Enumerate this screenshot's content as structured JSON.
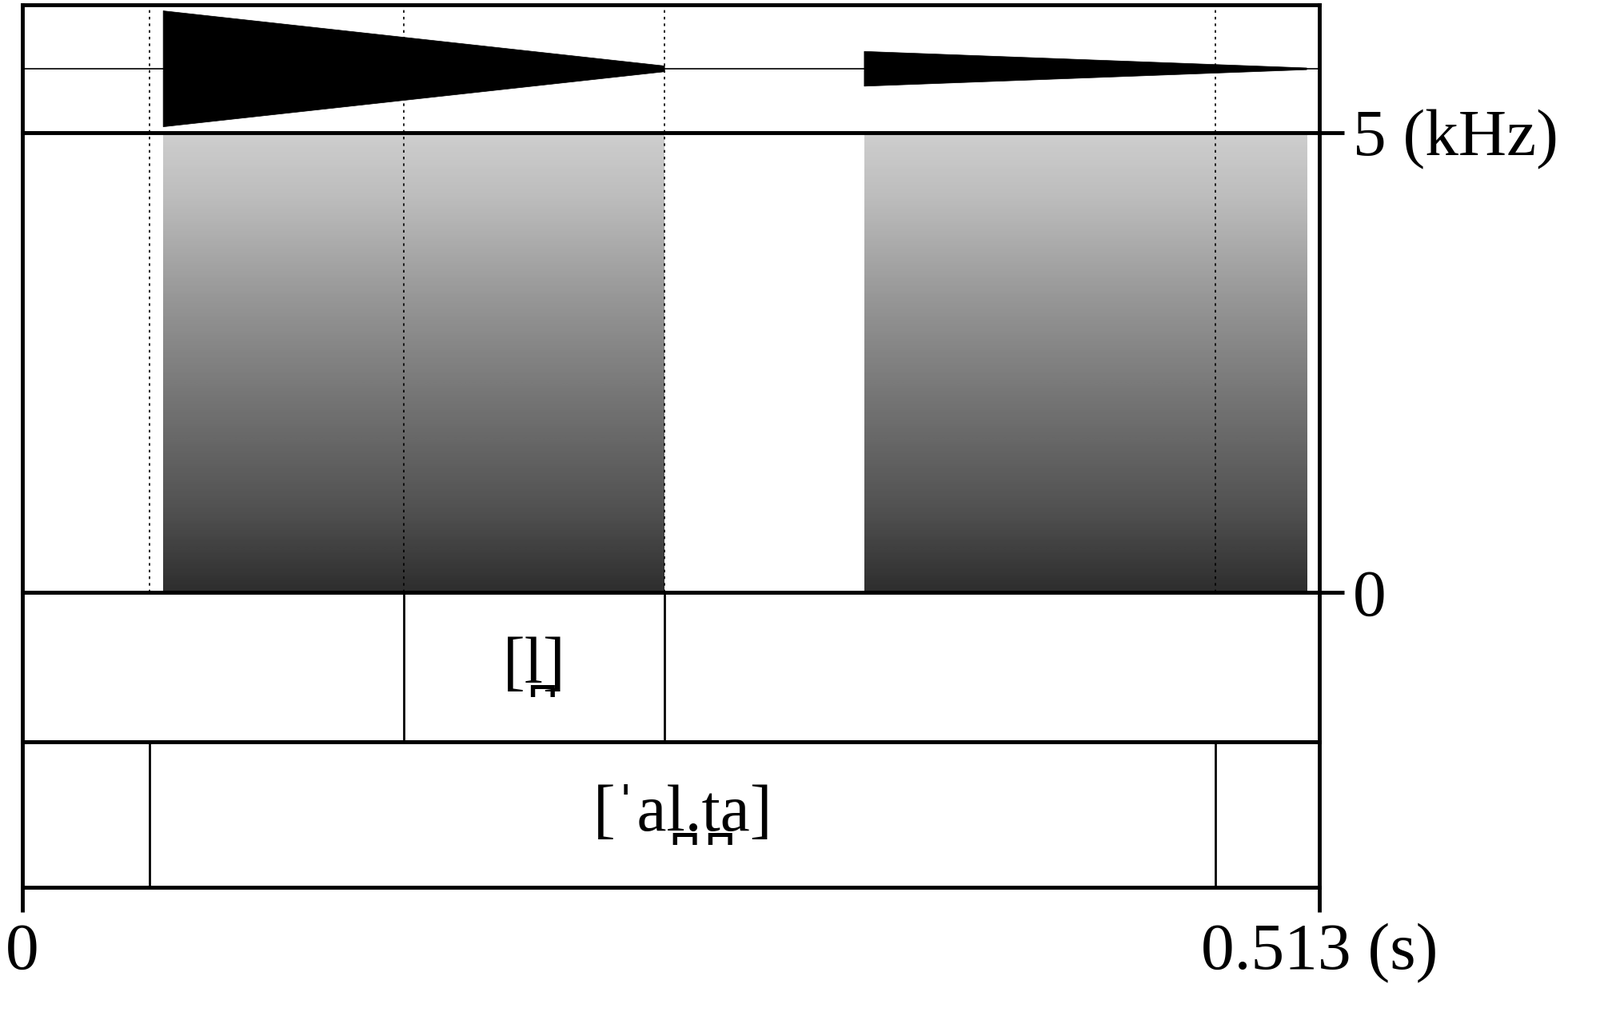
{
  "chart_data": {
    "type": "praat_textgrid",
    "time_axis": {
      "xlim": [
        0,
        0.513
      ],
      "unit": "(s)"
    },
    "frequency_axis": {
      "ylim": [
        0,
        5
      ],
      "unit": "(kHz)"
    },
    "voiced_segments": [
      {
        "start": 0.0557,
        "end": 0.254,
        "peak": 1.0
      },
      {
        "start": 0.333,
        "end": 0.508,
        "peak": 0.3
      }
    ],
    "tiers": [
      {
        "boundaries": [
          0.151,
          0.254
        ],
        "intervals": [
          {
            "start": 0.151,
            "end": 0.254,
            "text": "[l̪]"
          }
        ]
      },
      {
        "boundaries": [
          0.0504,
          0.472
        ],
        "intervals": [
          {
            "start": 0.0504,
            "end": 0.472,
            "text": "[ˈal̪.t̪a]"
          }
        ]
      }
    ]
  }
}
